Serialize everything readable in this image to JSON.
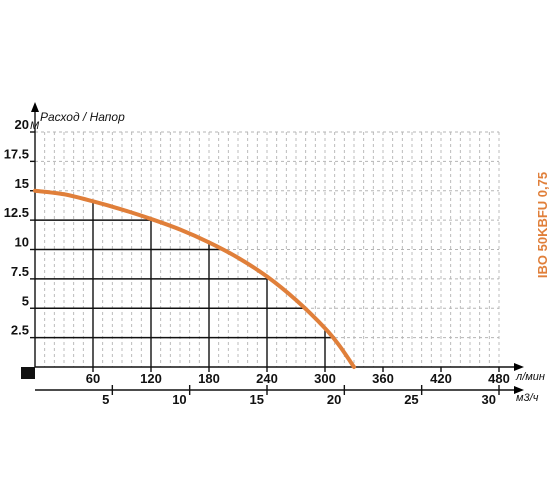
{
  "colors": {
    "curve": "#e07f3a",
    "grid_dashed": "#b5b5b5",
    "grid_solid": "#111111",
    "text": "#111111"
  },
  "chart_data": {
    "type": "line",
    "title": "IBO 50KBFU 0,75",
    "ylabel": "Расход / Напор",
    "y_unit": "М",
    "x_unit": "л/мин",
    "x2_unit": "м3/ч",
    "ylim": [
      0,
      20
    ],
    "xlim": [
      0,
      480
    ],
    "x2lim": [
      0,
      30
    ],
    "y_ticks": [
      2.5,
      5,
      7.5,
      10,
      12.5,
      15,
      17.5,
      20
    ],
    "y_tick_labels": [
      "2.5",
      "5",
      "7.5",
      "10",
      "12.5",
      "15",
      "17.5",
      "20"
    ],
    "x_ticks": [
      60,
      120,
      180,
      240,
      300,
      360,
      420,
      480
    ],
    "x_tick_labels": [
      "60",
      "120",
      "180",
      "240",
      "300",
      "360",
      "420",
      "480"
    ],
    "x2_ticks": [
      5,
      10,
      15,
      20,
      25,
      30
    ],
    "x2_tick_labels": [
      "5",
      "10",
      "15",
      "20",
      "25",
      "30"
    ],
    "grid": "dashed",
    "series": [
      {
        "x": [
          0,
          30,
          60,
          90,
          120,
          150,
          180,
          210,
          240,
          270,
          300,
          315,
          330
        ],
        "y": [
          15,
          14.7,
          14.1,
          13.4,
          12.6,
          11.7,
          10.6,
          9.3,
          7.7,
          5.7,
          3.3,
          1.8,
          0
        ]
      }
    ],
    "reference_points": [
      {
        "x": 60,
        "y": 14.1
      },
      {
        "x": 120,
        "y": 12.6
      },
      {
        "x": 180,
        "y": 10.6
      },
      {
        "x": 240,
        "y": 7.7
      },
      {
        "x": 300,
        "y": 3.3
      }
    ]
  }
}
